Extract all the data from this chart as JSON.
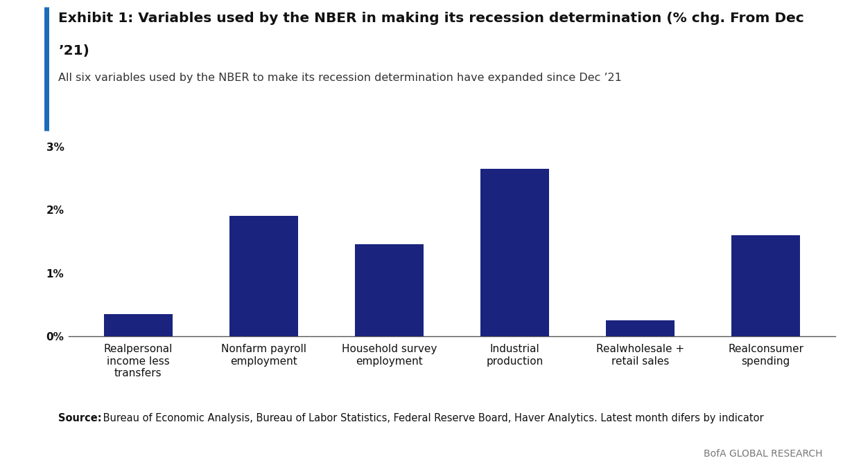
{
  "title_line1": "Exhibit 1: Variables used by the NBER in making its recession determination (% chg. From Dec",
  "title_line2": "’21)",
  "subtitle": "All six variables used by the NBER to make its recession determination have expanded since Dec ’21",
  "categories": [
    "Realpersonal\nincome less\ntransfers",
    "Nonfarm payroll\nemployment",
    "Household survey\nemployment",
    "Industrial\nproduction",
    "Realwholesale +\nretail sales",
    "Realconsumer\nspending"
  ],
  "values": [
    0.0035,
    0.019,
    0.0145,
    0.0265,
    0.0025,
    0.016
  ],
  "bar_color": "#1a237e",
  "ylim_max": 0.031,
  "yticks": [
    0.0,
    0.01,
    0.02,
    0.03
  ],
  "ytick_labels": [
    "0%",
    "1%",
    "2%",
    "3%"
  ],
  "source_bold": "Source:",
  "source_text": " Bureau of Economic Analysis, Bureau of Labor Statistics, Federal Reserve Board, Haver Analytics. Latest month difers by indicator",
  "branding": "BofA GLOBAL RESEARCH",
  "accent_color": "#1e6bb8",
  "background_color": "#ffffff",
  "title_fontsize": 14.5,
  "subtitle_fontsize": 11.5,
  "tick_label_fontsize": 11,
  "source_fontsize": 10.5,
  "branding_fontsize": 10,
  "bar_width": 0.55
}
